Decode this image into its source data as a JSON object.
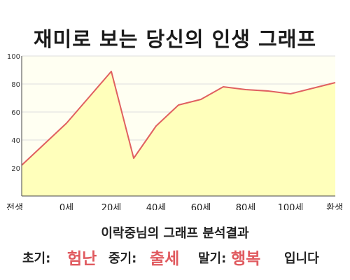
{
  "title": "재미로 보는 당신의 인생 그래프",
  "chart_data": {
    "type": "area",
    "x_categories": [
      "전생",
      "0세",
      "20세",
      "40세",
      "60세",
      "80세",
      "100세",
      "환생"
    ],
    "ylim": [
      0,
      100
    ],
    "yticks": [
      20,
      40,
      60,
      80,
      100
    ],
    "x": [
      0,
      1,
      2,
      2.5,
      3,
      3.5,
      4,
      4.5,
      5,
      5.5,
      6,
      6.5,
      7
    ],
    "values": [
      22,
      52,
      89,
      27,
      50,
      65,
      69,
      78,
      76,
      75,
      73,
      77,
      81
    ],
    "colors": {
      "line": "#e06060",
      "fill": "#ffffbb",
      "plot_bg": "#fffff2",
      "axis": "#444444",
      "grid": "#dddddd"
    }
  },
  "caption": "이락중님의 그래프 분석결과",
  "result": {
    "early_label": "초기:",
    "early_value": "험난",
    "middle_label": "중기:",
    "middle_value": "출세",
    "late_label": "말기:",
    "late_value": "행복",
    "ending": "입니다"
  }
}
